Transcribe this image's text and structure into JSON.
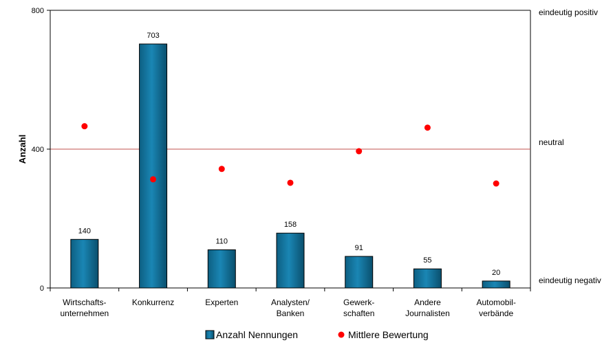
{
  "chart_data": {
    "type": "bar",
    "title": "",
    "xlabel": "",
    "ylabel": "Anzahl",
    "ylim": [
      0,
      800
    ],
    "yticks": [
      0,
      400,
      800
    ],
    "categories": [
      [
        "Wirtschafts-",
        "unternehmen"
      ],
      [
        "Konkurrenz"
      ],
      [
        "Experten"
      ],
      [
        "Analysten/",
        "Banken"
      ],
      [
        "Gewerk-",
        "schaften"
      ],
      [
        "Andere",
        "Journalisten"
      ],
      [
        "Automobil-",
        "verbände"
      ]
    ],
    "series": [
      {
        "name": "Anzahl Nennungen",
        "type": "bar",
        "color": "#1a86b4",
        "values": [
          140,
          703,
          110,
          158,
          91,
          55,
          20
        ],
        "data_labels": [
          "140",
          "703",
          "110",
          "158",
          "91",
          "55",
          "20"
        ]
      },
      {
        "name": "Mittlere Bewertung",
        "type": "scatter",
        "color": "#ff0000",
        "values": [
          466,
          313,
          343,
          303,
          394,
          462,
          301
        ]
      }
    ],
    "reference_line": {
      "value": 400,
      "color": "#c0504d"
    },
    "right_axis_labels": [
      {
        "text": "eindeutig positiv",
        "value": 800
      },
      {
        "text": "neutral",
        "value": 400
      },
      {
        "text": "eindeutig negativ",
        "value": 0
      }
    ],
    "grid": false,
    "legend": "bottom"
  }
}
